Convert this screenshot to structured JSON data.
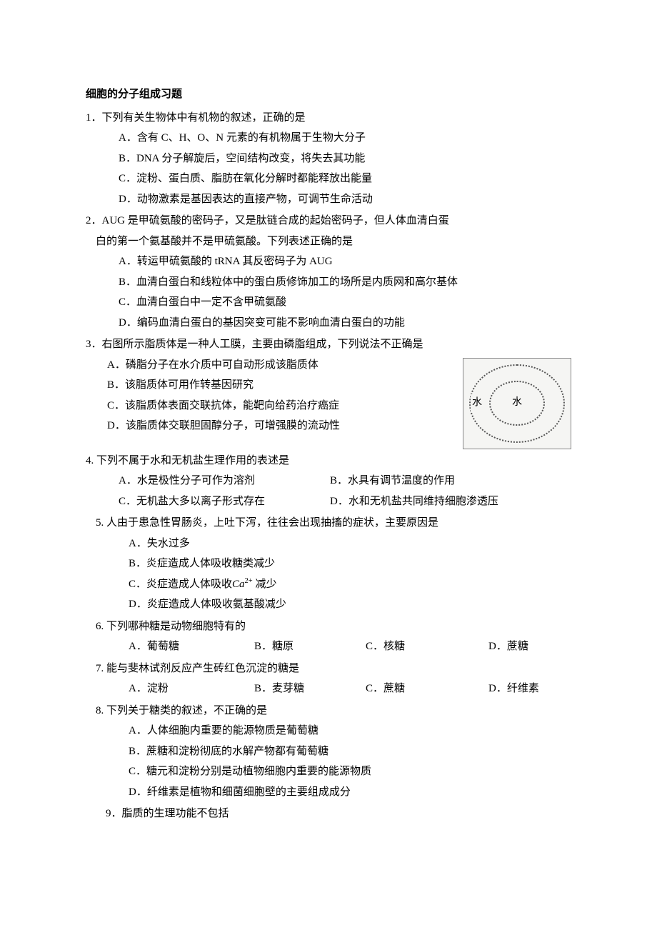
{
  "title": "细胞的分子组成习题",
  "q1": {
    "text": "1．下列有关生物体中有机物的叙述，正确的是",
    "a": "A．含有 C、H、O、N 元素的有机物属于生物大分子",
    "b": "B．DNA 分子解旋后，空间结构改变，将失去其功能",
    "c": "C．淀粉、蛋白质、脂肪在氧化分解时都能释放出能量",
    "d": "D．动物激素是基因表达的直接产物，可调节生命活动"
  },
  "q2": {
    "text1": "2．AUG 是甲硫氨酸的密码子，又是肽链合成的起始密码子，但人体血清白蛋",
    "text2": "白的第一个氨基酸并不是甲硫氨酸。下列表述正确的是",
    "a": "A．转运甲硫氨酸的 tRNA 其反密码子为 AUG",
    "b": "B．血清白蛋白和线粒体中的蛋白质修饰加工的场所是内质网和高尔基体",
    "c": "C．血清白蛋白中一定不含甲硫氨酸",
    "d": "D．编码血清白蛋白的基因突变可能不影响血清白蛋白的功能"
  },
  "q3": {
    "text": "3．右图所示脂质体是一种人工膜，主要由磷脂组成，下列说法不正确是",
    "a": "A．磷脂分子在水介质中可自动形成该脂质体",
    "b": "B．该脂质体可用作转基因研究",
    "c": "C．该脂质体表面交联抗体，能靶向给药治疗癌症",
    "d": "D．该脂质体交联胆固醇分子，可增强膜的流动性",
    "figLabelOuter": "水",
    "figLabelInner": "水"
  },
  "q4": {
    "text": "4. 下列不属于水和无机盐生理作用的表述是",
    "a": "A．水是极性分子可作为溶剂",
    "b": "B．水具有调节温度的作用",
    "c": "C．无机盐大多以离子形式存在",
    "d": "D．水和无机盐共同维持细胞渗透压"
  },
  "q5": {
    "text": "5. 人由于患急性胃肠炎，上吐下泻，往往会出现抽搐的症状，主要原因是",
    "a": "A．失水过多",
    "b": "B．炎症造成人体吸收糖类减少",
    "c_pre": "C．炎症造成人体吸收",
    "c_var": "Ca",
    "c_sup": "2+",
    "c_post": " 减少",
    "d": "D．炎症造成人体吸收氨基酸减少"
  },
  "q6": {
    "text": "6. 下列哪种糖是动物细胞特有的",
    "a": "A．葡萄糖",
    "b": "B．糖原",
    "c": "C．核糖",
    "d": "D．蔗糖"
  },
  "q7": {
    "text": "7. 能与斐林试剂反应产生砖红色沉淀的糖是",
    "a": "A．淀粉",
    "b": "B．麦芽糖",
    "c": "C．蔗糖",
    "d": "D．纤维素"
  },
  "q8": {
    "text": "8. 下列关于糖类的叙述，不正确的是",
    "a": "A．人体细胞内重要的能源物质是葡萄糖",
    "b": "B．蔗糖和淀粉彻底的水解产物都有葡萄糖",
    "c": "C．糖元和淀粉分别是动植物细胞内重要的能源物质",
    "d": "D．纤维素是植物和细菌细胞壁的主要组成成分"
  },
  "q9": {
    "text": "9．脂质的生理功能不包括"
  },
  "layout": {
    "q4ColWidths": [
      "296px",
      "auto"
    ],
    "q6ColWidths": [
      "176px",
      "156px",
      "172px",
      "auto"
    ],
    "q7ColWidths": [
      "176px",
      "156px",
      "172px",
      "auto"
    ]
  }
}
